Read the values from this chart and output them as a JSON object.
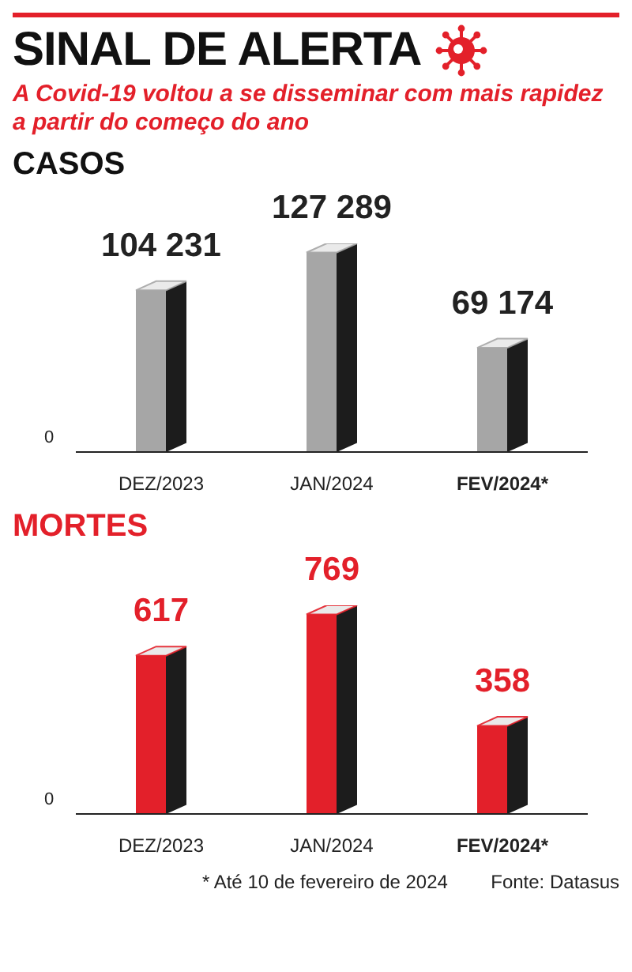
{
  "chart_data": [
    {
      "type": "other",
      "title": "SINAL DE ALERTA",
      "subtitle": "A Covid-19 voltou a se disseminar com mais rapidez a partir do começo do ano"
    },
    {
      "type": "bar",
      "title": "CASOS",
      "categories": [
        "DEZ/2023",
        "JAN/2024",
        "FEV/2024*"
      ],
      "annotations": [
        "0"
      ],
      "series": [
        {
          "color": "#a6a6a6",
          "values": [
            104231,
            127289,
            69174
          ],
          "value_labels": [
            "104 231",
            "127 289",
            "69 174"
          ]
        }
      ]
    },
    {
      "type": "bar",
      "title": "MORTES",
      "categories": [
        "DEZ/2023",
        "JAN/2024",
        "FEV/2024*"
      ],
      "series": [
        {
          "color": "#e3202a",
          "values": [
            617,
            769,
            358
          ],
          "value_labels": [
            "617",
            "769",
            "358"
          ]
        }
      ],
      "annotations": [
        "0",
        "* Até 10 de fevereiro de 2024",
        "Fonte: Datasus"
      ]
    }
  ]
}
